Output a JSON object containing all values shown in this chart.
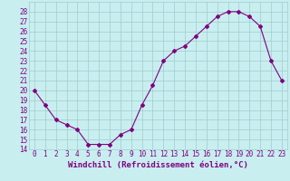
{
  "x": [
    0,
    1,
    2,
    3,
    4,
    5,
    6,
    7,
    8,
    9,
    10,
    11,
    12,
    13,
    14,
    15,
    16,
    17,
    18,
    19,
    20,
    21,
    22,
    23
  ],
  "y": [
    20,
    18.5,
    17,
    16.5,
    16,
    14.5,
    14.5,
    14.5,
    15.5,
    16,
    18.5,
    20.5,
    23,
    24,
    24.5,
    25.5,
    26.5,
    27.5,
    28,
    28,
    27.5,
    26.5,
    23,
    21
  ],
  "line_color": "#800080",
  "marker": "D",
  "marker_size": 2.0,
  "background_color": "#c8eef0",
  "grid_color": "#a0cccc",
  "xlabel": "Windchill (Refroidissement éolien,°C)",
  "xlabel_fontsize": 6.5,
  "xlabel_color": "#800080",
  "ylim": [
    14,
    29
  ],
  "xlim": [
    -0.5,
    23.5
  ],
  "yticks": [
    14,
    15,
    16,
    17,
    18,
    19,
    20,
    21,
    22,
    23,
    24,
    25,
    26,
    27,
    28
  ],
  "xticks": [
    0,
    1,
    2,
    3,
    4,
    5,
    6,
    7,
    8,
    9,
    10,
    11,
    12,
    13,
    14,
    15,
    16,
    17,
    18,
    19,
    20,
    21,
    22,
    23
  ],
  "tick_fontsize": 5.5,
  "tick_color": "#800080"
}
